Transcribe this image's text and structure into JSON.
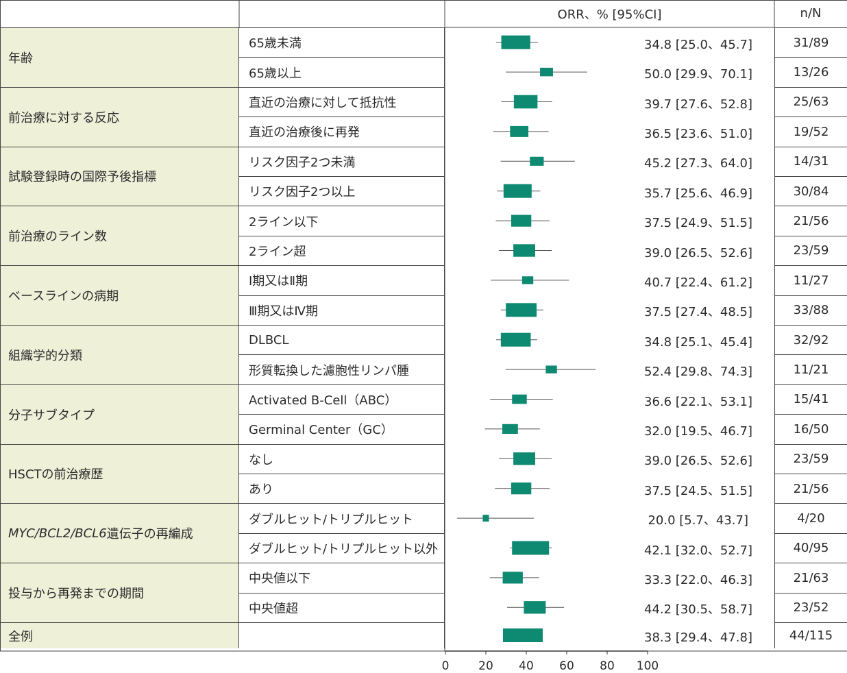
{
  "header": {
    "orr_label": "ORR、% [95%CI]",
    "nn_label": "n/N"
  },
  "colors": {
    "marker": "#0e8a72",
    "category_bg": "#eef0d8",
    "border": "#444444"
  },
  "chart_data": {
    "type": "forest",
    "xlim": [
      0,
      100
    ],
    "xticks": [
      "0",
      "20",
      "40",
      "60",
      "80",
      "100"
    ],
    "groups": [
      {
        "label": "年齢",
        "rows": [
          {
            "label": "65歳未満",
            "est": 34.8,
            "lo": 25.0,
            "hi": 45.7,
            "text": "34.8 [25.0、45.7]",
            "n": "31/89"
          },
          {
            "label": "65歳以上",
            "est": 50.0,
            "lo": 29.9,
            "hi": 70.1,
            "text": "50.0 [29.9、70.1]",
            "n": "13/26"
          }
        ]
      },
      {
        "label": "前治療に対する反応",
        "rows": [
          {
            "label": "直近の治療に対して抵抗性",
            "est": 39.7,
            "lo": 27.6,
            "hi": 52.8,
            "text": "39.7 [27.6、52.8]",
            "n": "25/63"
          },
          {
            "label": "直近の治療後に再発",
            "est": 36.5,
            "lo": 23.6,
            "hi": 51.0,
            "text": "36.5 [23.6、51.0]",
            "n": "19/52"
          }
        ]
      },
      {
        "label": "試験登録時の国際予後指標",
        "rows": [
          {
            "label": "リスク因子2つ未満",
            "est": 45.2,
            "lo": 27.3,
            "hi": 64.0,
            "text": "45.2 [27.3、64.0]",
            "n": "14/31"
          },
          {
            "label": "リスク因子2つ以上",
            "est": 35.7,
            "lo": 25.6,
            "hi": 46.9,
            "text": "35.7 [25.6、46.9]",
            "n": "30/84"
          }
        ]
      },
      {
        "label": "前治療のライン数",
        "rows": [
          {
            "label": "2ライン以下",
            "est": 37.5,
            "lo": 24.9,
            "hi": 51.5,
            "text": "37.5 [24.9、51.5]",
            "n": "21/56"
          },
          {
            "label": "2ライン超",
            "est": 39.0,
            "lo": 26.5,
            "hi": 52.6,
            "text": "39.0 [26.5、52.6]",
            "n": "23/59"
          }
        ]
      },
      {
        "label": "ベースラインの病期",
        "rows": [
          {
            "label": "Ⅰ期又はⅡ期",
            "est": 40.7,
            "lo": 22.4,
            "hi": 61.2,
            "text": "40.7 [22.4、61.2]",
            "n": "11/27"
          },
          {
            "label": "Ⅲ期又はⅣ期",
            "est": 37.5,
            "lo": 27.4,
            "hi": 48.5,
            "text": "37.5 [27.4、48.5]",
            "n": "33/88"
          }
        ]
      },
      {
        "label": "組織学的分類",
        "rows": [
          {
            "label": "DLBCL",
            "est": 34.8,
            "lo": 25.1,
            "hi": 45.4,
            "text": "34.8 [25.1、45.4]",
            "n": "32/92"
          },
          {
            "label": "形質転換した濾胞性リンパ腫",
            "est": 52.4,
            "lo": 29.8,
            "hi": 74.3,
            "text": "52.4 [29.8、74.3]",
            "n": "11/21"
          }
        ]
      },
      {
        "label": "分子サブタイプ",
        "rows": [
          {
            "label": "Activated B-Cell（ABC）",
            "est": 36.6,
            "lo": 22.1,
            "hi": 53.1,
            "text": "36.6 [22.1、53.1]",
            "n": "15/41"
          },
          {
            "label": "Germinal Center（GC）",
            "est": 32.0,
            "lo": 19.5,
            "hi": 46.7,
            "text": "32.0 [19.5、46.7]",
            "n": "16/50"
          }
        ]
      },
      {
        "label": "HSCTの前治療歴",
        "rows": [
          {
            "label": "なし",
            "est": 39.0,
            "lo": 26.5,
            "hi": 52.6,
            "text": "39.0 [26.5、52.6]",
            "n": "23/59"
          },
          {
            "label": "あり",
            "est": 37.5,
            "lo": 24.5,
            "hi": 51.5,
            "text": "37.5 [24.5、51.5]",
            "n": "21/56"
          }
        ]
      },
      {
        "label_italic": "MYC/BCL2/BCL6",
        "label": "遺伝子の再編成",
        "rows": [
          {
            "label": "ダブルヒット/トリプルヒット",
            "est": 20.0,
            "lo": 5.7,
            "hi": 43.7,
            "text": "20.0 [5.7、43.7]",
            "n": "4/20"
          },
          {
            "label": "ダブルヒット/トリプルヒット以外",
            "est": 42.1,
            "lo": 32.0,
            "hi": 52.7,
            "text": "42.1 [32.0、52.7]",
            "n": "40/95"
          }
        ]
      },
      {
        "label": "投与から再発までの期間",
        "rows": [
          {
            "label": "中央値以下",
            "est": 33.3,
            "lo": 22.0,
            "hi": 46.3,
            "text": "33.3 [22.0、46.3]",
            "n": "21/63"
          },
          {
            "label": "中央値超",
            "est": 44.2,
            "lo": 30.5,
            "hi": 58.7,
            "text": "44.2 [30.5、58.7]",
            "n": "23/52"
          }
        ]
      },
      {
        "label": "全例",
        "rows": [
          {
            "label": "",
            "est": 38.3,
            "lo": 29.4,
            "hi": 47.8,
            "text": "38.3 [29.4、47.8]",
            "n": "44/115"
          }
        ]
      }
    ]
  }
}
